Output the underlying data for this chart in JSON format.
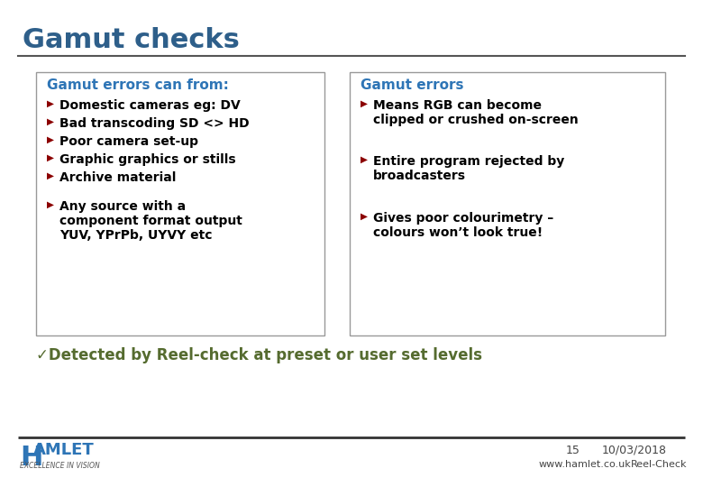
{
  "title": "Gamut checks",
  "title_color": "#2E5F8A",
  "background_color": "#FFFFFF",
  "left_box_title": "Gamut errors can from:",
  "left_box_items": [
    "Domestic cameras eg: DV",
    "Bad transcoding SD <> HD",
    "Poor camera set-up",
    "Graphic graphics or stills",
    "Archive material",
    "Any source with a\ncomponent format output\nYUV, YPrPb, UYVY etc"
  ],
  "right_box_title": "Gamut errors",
  "right_box_items": [
    "Means RGB can become\nclipped or crushed on-screen",
    "Entire program rejected by\nbroadcasters",
    "Gives poor colourimetry –\ncolours won’t look true!"
  ],
  "bullet_color": "#8B0000",
  "box_title_color": "#2E75B6",
  "box_border_color": "#999999",
  "checkmark_text": "✓Detected by Reel-check at preset or user set levels",
  "checkmark_color": "#556B2F",
  "footer_page": "15",
  "footer_date": "10/03/2018",
  "footer_website": "www.hamlet.co.uk",
  "footer_product": "Reel-Check",
  "hamlet_color": "#2E75B6",
  "divider_color": "#555555"
}
